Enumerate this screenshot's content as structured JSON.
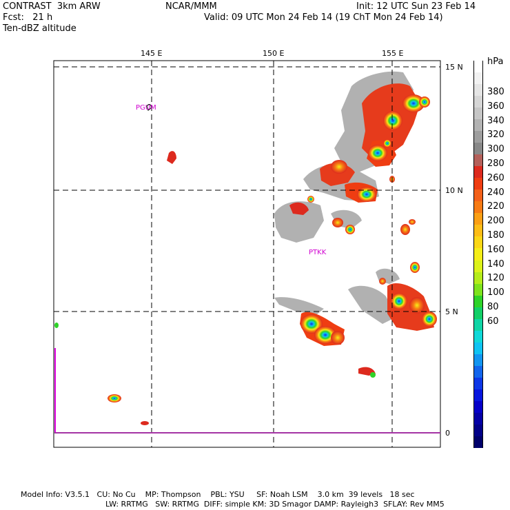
{
  "header": {
    "left_line1": "CONTRAST  3km ARW",
    "left_line2": "Fcst:   21 h",
    "left_line3": "Ten-dBZ altitude",
    "center": "NCAR/MMM",
    "right_line1": "Init: 12 UTC Sun 23 Feb 14",
    "right_line2": "Valid: 09 UTC Mon 24 Feb 14 (19 ChT Mon 24 Feb 14)"
  },
  "axes": {
    "lon_labels": [
      "145 E",
      "150 E",
      "155 E"
    ],
    "lat_labels": [
      "15 N",
      "10 N",
      "5 N",
      "0"
    ]
  },
  "stations": [
    "PGUM",
    "PTKK"
  ],
  "colorbar": {
    "unit": "hPa",
    "labels": [
      "380",
      "360",
      "340",
      "320",
      "300",
      "280",
      "260",
      "240",
      "220",
      "200",
      "180",
      "160",
      "140",
      "120",
      "100",
      "80",
      "60"
    ],
    "colors": [
      "#ffffff",
      "#f2f2f2",
      "#e5e5e5",
      "#d6d6d6",
      "#c6c6c6",
      "#b3b3b3",
      "#9e9e9e",
      "#888888",
      "#b4605a",
      "#dd2a1e",
      "#ef3d12",
      "#f4611a",
      "#f77b14",
      "#fb9f14",
      "#fdbd16",
      "#fbd716",
      "#f5ee18",
      "#dcf21a",
      "#b5ec1b",
      "#7ee31d",
      "#2ed328",
      "#12cf67",
      "#0fd5a6",
      "#10d8d8",
      "#0fc3f2",
      "#1295f0",
      "#1265ec",
      "#0d37e6",
      "#0716de",
      "#0500c8",
      "#0400a6",
      "#020088",
      "#00006a"
    ]
  },
  "footer": {
    "line1": "Model Info: V3.5.1   CU: No Cu    MP: Thompson    PBL: YSU     SF: Noah LSM    3.0 km  39 levels   18 sec",
    "line2": "LW: RRTMG   SW: RRTMG  DIFF: simple KM: 3D Smagor DAMP: Rayleigh3  SFLAY: Rev MM5"
  }
}
